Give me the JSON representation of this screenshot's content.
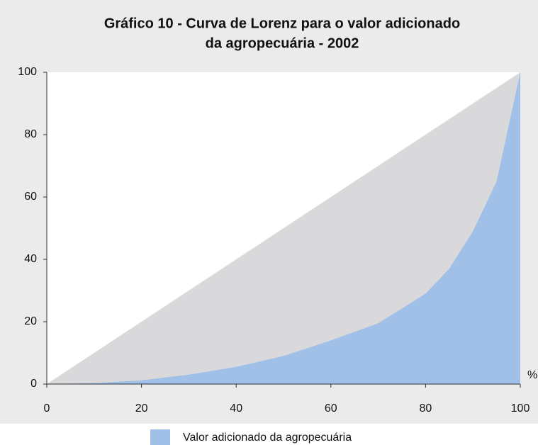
{
  "chart_data": {
    "type": "area",
    "title": [
      "Gráfico 10 - Curva de Lorenz para o valor adicionado",
      "da agropecuária - 2002"
    ],
    "xlabel": "%",
    "x": [
      0,
      10,
      20,
      30,
      40,
      50,
      60,
      70,
      80,
      85,
      90,
      95,
      100
    ],
    "series": [
      {
        "color": "#d9d9dc",
        "values": [
          0,
          10,
          20,
          30,
          40,
          50,
          60,
          70,
          80,
          85,
          90,
          95,
          100
        ]
      },
      {
        "name": "Valor adicionado da agropecuária",
        "color": "#a0c0e8",
        "values": [
          0,
          0.3,
          1.2,
          3,
          5.5,
          9,
          14,
          19.5,
          29,
          37,
          49,
          65,
          100
        ]
      }
    ],
    "xlim": [
      0,
      100
    ],
    "xticks": [
      0,
      20,
      40,
      60,
      80,
      100
    ],
    "ylim": [
      0,
      100
    ],
    "yticks": [
      0,
      20,
      40,
      60,
      80,
      100
    ],
    "grid": false,
    "legend": "bottom"
  }
}
